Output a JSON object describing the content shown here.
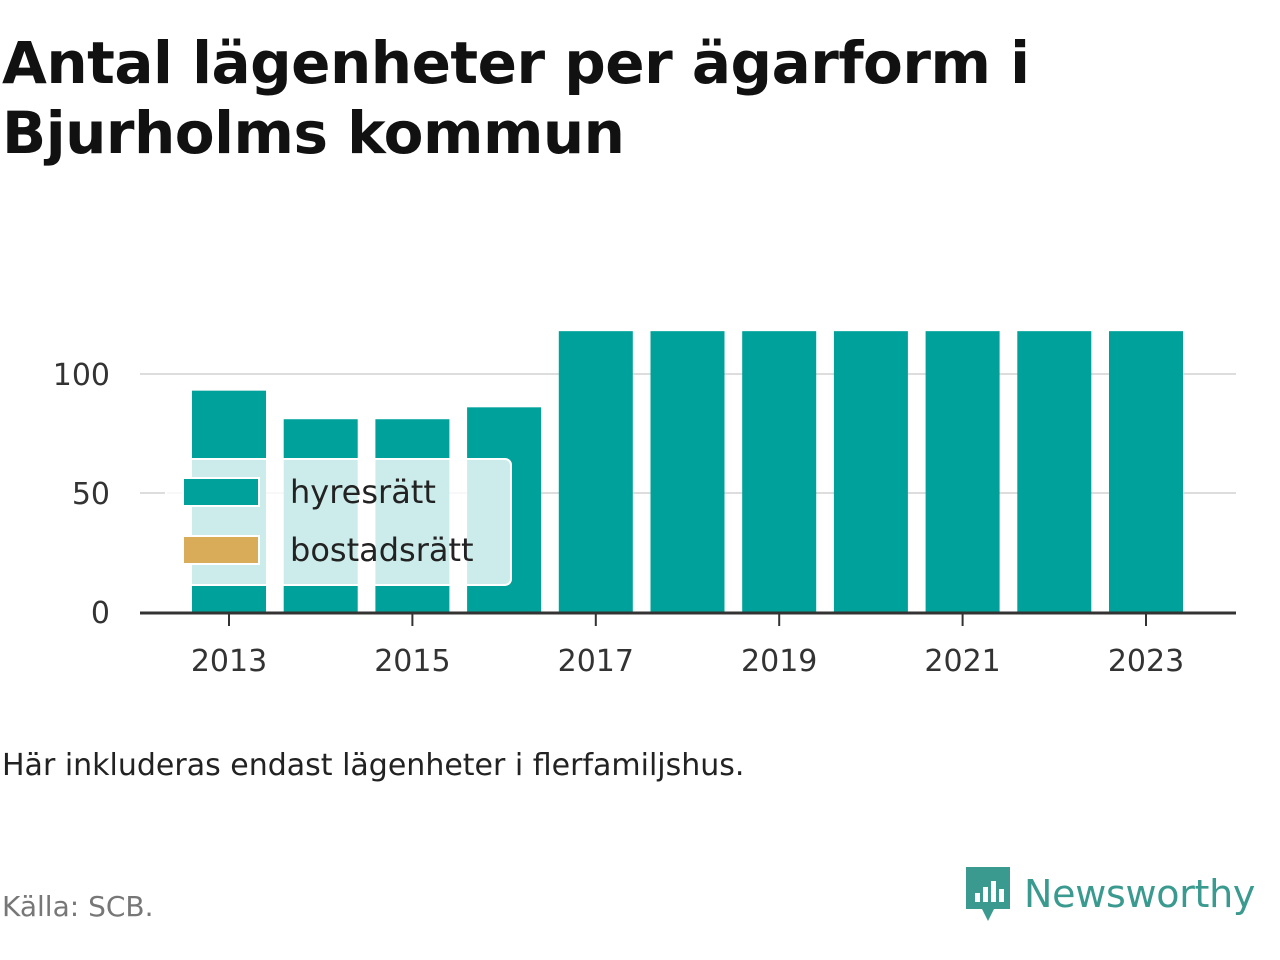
{
  "title_line1": "Antal lägenheter per ägarform i",
  "title_line2": "Bjurholms kommun",
  "note": "Här inkluderas endast lägenheter i flerfamiljshus.",
  "source": "Källa: SCB.",
  "brand": "Newsworthy",
  "colors": {
    "hyresratt": "#00a19a",
    "bostadsratt": "#d9ac5a",
    "axis": "#333333",
    "grid": "#dddddd",
    "brand": "#3a9a8f"
  },
  "chart_data": {
    "type": "bar",
    "stacked": true,
    "categories": [
      "2013",
      "2014",
      "2015",
      "2016",
      "2017",
      "2018",
      "2019",
      "2020",
      "2021",
      "2022",
      "2023"
    ],
    "x_tick_labels": [
      "2013",
      "2015",
      "2017",
      "2019",
      "2021",
      "2023"
    ],
    "y_ticks": [
      0,
      50,
      100
    ],
    "ylim": [
      0,
      120
    ],
    "grid": true,
    "legend_position": "bottom-left",
    "series": [
      {
        "name": "hyresrätt",
        "values": [
          93,
          81,
          81,
          86,
          118,
          118,
          118,
          118,
          118,
          118,
          118
        ]
      },
      {
        "name": "bostadsrätt",
        "values": [
          0,
          0,
          0,
          0,
          0,
          0,
          0,
          0,
          0,
          0,
          0
        ]
      }
    ]
  }
}
